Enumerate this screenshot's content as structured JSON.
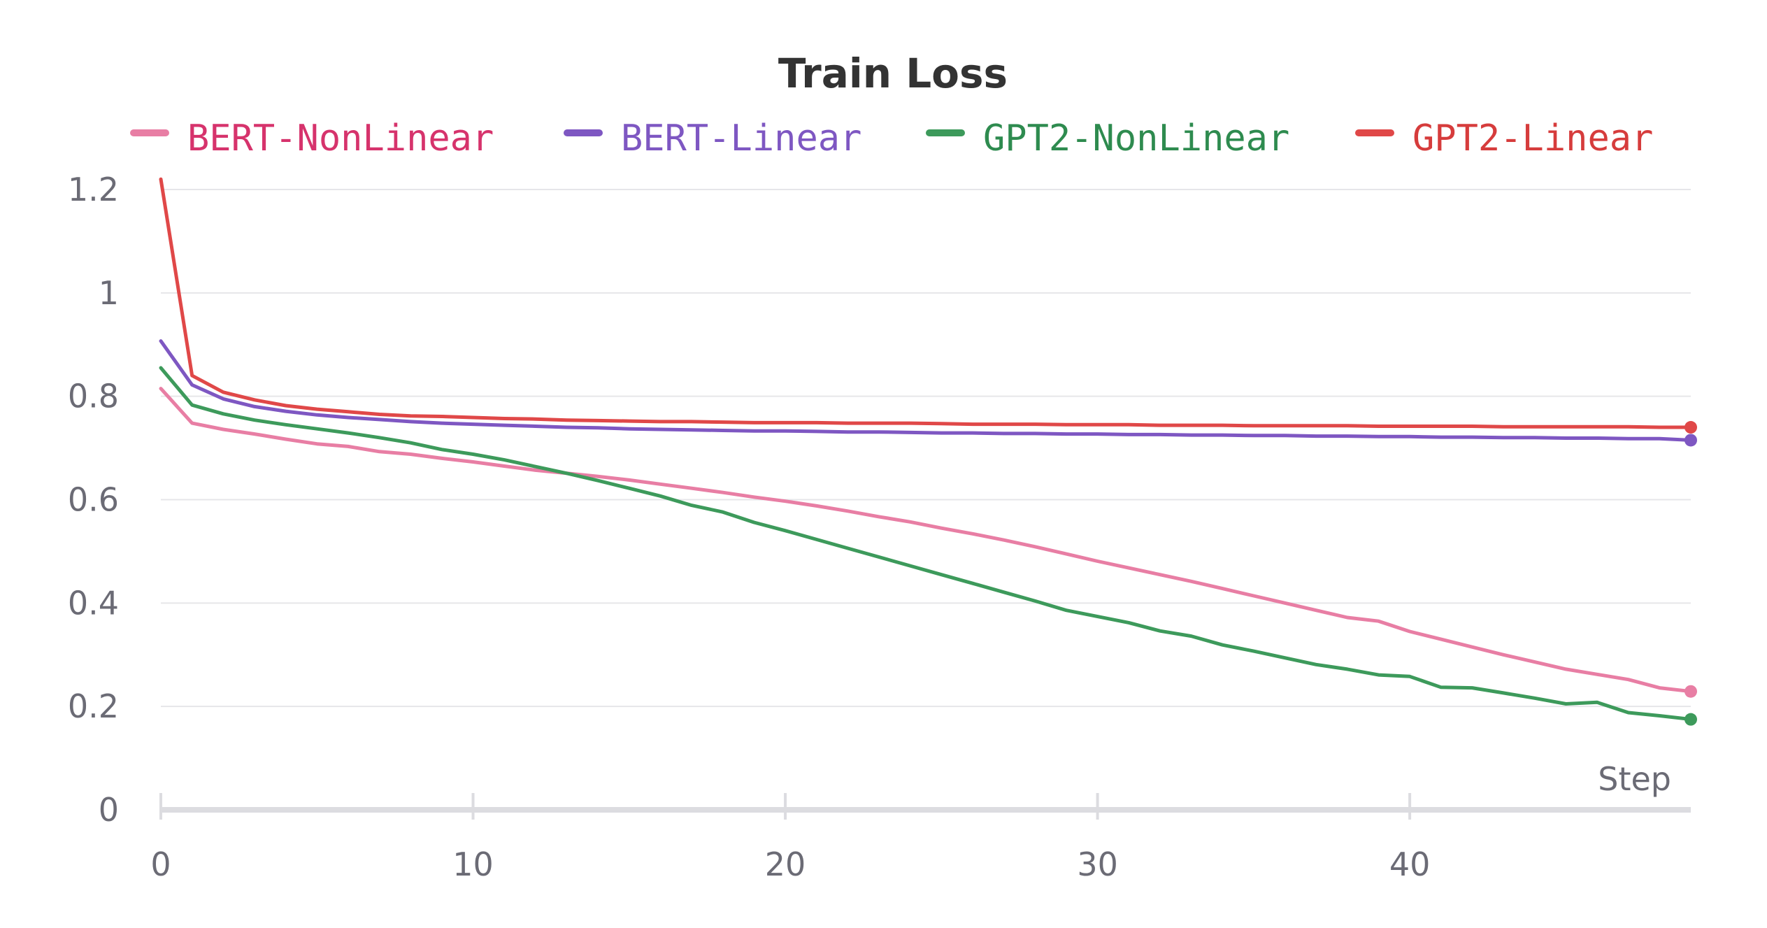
{
  "chart_data": {
    "type": "line",
    "title": "Train Loss",
    "xlabel": "Step",
    "ylabel": "",
    "xlim": [
      0,
      49
    ],
    "ylim": [
      0,
      1.2
    ],
    "xticks": [
      0,
      10,
      20,
      30,
      40
    ],
    "xtick_labels": [
      "0",
      "10",
      "20",
      "30",
      "40"
    ],
    "yticks": [
      0,
      0.2,
      0.4,
      0.6,
      0.8,
      1,
      1.2
    ],
    "ytick_labels": [
      "0",
      "0.2",
      "0.4",
      "0.6",
      "0.8",
      "1",
      "1.2"
    ],
    "grid": "horizontal",
    "legend_position": "top",
    "x": [
      0,
      1,
      2,
      3,
      4,
      5,
      6,
      7,
      8,
      9,
      10,
      11,
      12,
      13,
      14,
      15,
      16,
      17,
      18,
      19,
      20,
      21,
      22,
      23,
      24,
      25,
      26,
      27,
      28,
      29,
      30,
      31,
      32,
      33,
      34,
      35,
      36,
      37,
      38,
      39,
      40,
      41,
      42,
      43,
      44,
      45,
      46,
      47,
      48,
      49
    ],
    "series": [
      {
        "name": "BERT-NonLinear",
        "color": "#e87ea4",
        "label_color": "#d6336c",
        "values": [
          0.815,
          0.748,
          0.736,
          0.727,
          0.717,
          0.708,
          0.703,
          0.693,
          0.688,
          0.68,
          0.673,
          0.665,
          0.657,
          0.651,
          0.645,
          0.638,
          0.63,
          0.622,
          0.614,
          0.605,
          0.597,
          0.588,
          0.578,
          0.567,
          0.557,
          0.545,
          0.534,
          0.522,
          0.509,
          0.495,
          0.481,
          0.468,
          0.455,
          0.442,
          0.428,
          0.414,
          0.4,
          0.386,
          0.372,
          0.365,
          0.345,
          0.33,
          0.315,
          0.3,
          0.286,
          0.272,
          0.262,
          0.252,
          0.236,
          0.229
        ]
      },
      {
        "name": "BERT-Linear",
        "color": "#7e57c2",
        "label_color": "#7e57c2",
        "values": [
          0.907,
          0.822,
          0.795,
          0.78,
          0.771,
          0.764,
          0.759,
          0.755,
          0.751,
          0.748,
          0.746,
          0.744,
          0.742,
          0.74,
          0.739,
          0.737,
          0.736,
          0.735,
          0.734,
          0.733,
          0.733,
          0.732,
          0.731,
          0.731,
          0.73,
          0.729,
          0.729,
          0.728,
          0.728,
          0.727,
          0.727,
          0.726,
          0.726,
          0.725,
          0.725,
          0.724,
          0.724,
          0.723,
          0.723,
          0.722,
          0.722,
          0.721,
          0.721,
          0.72,
          0.72,
          0.719,
          0.719,
          0.718,
          0.718,
          0.715
        ]
      },
      {
        "name": "GPT2-NonLinear",
        "color": "#3d9a5b",
        "label_color": "#2e8b4f",
        "values": [
          0.855,
          0.783,
          0.766,
          0.754,
          0.745,
          0.737,
          0.729,
          0.72,
          0.71,
          0.697,
          0.688,
          0.677,
          0.664,
          0.651,
          0.637,
          0.622,
          0.607,
          0.589,
          0.576,
          0.556,
          0.54,
          0.523,
          0.506,
          0.489,
          0.472,
          0.455,
          0.438,
          0.421,
          0.404,
          0.386,
          0.374,
          0.362,
          0.346,
          0.336,
          0.319,
          0.307,
          0.294,
          0.281,
          0.272,
          0.261,
          0.258,
          0.237,
          0.236,
          0.226,
          0.216,
          0.205,
          0.208,
          0.188,
          0.182,
          0.175
        ]
      },
      {
        "name": "GPT2-Linear",
        "color": "#e04848",
        "label_color": "#d63c3c",
        "values": [
          1.22,
          0.84,
          0.808,
          0.793,
          0.782,
          0.775,
          0.77,
          0.765,
          0.762,
          0.761,
          0.759,
          0.757,
          0.756,
          0.754,
          0.753,
          0.752,
          0.751,
          0.751,
          0.75,
          0.749,
          0.749,
          0.749,
          0.748,
          0.748,
          0.748,
          0.747,
          0.746,
          0.746,
          0.746,
          0.745,
          0.745,
          0.745,
          0.744,
          0.744,
          0.744,
          0.743,
          0.743,
          0.743,
          0.743,
          0.742,
          0.742,
          0.742,
          0.742,
          0.741,
          0.741,
          0.741,
          0.741,
          0.741,
          0.74,
          0.74
        ]
      }
    ]
  }
}
